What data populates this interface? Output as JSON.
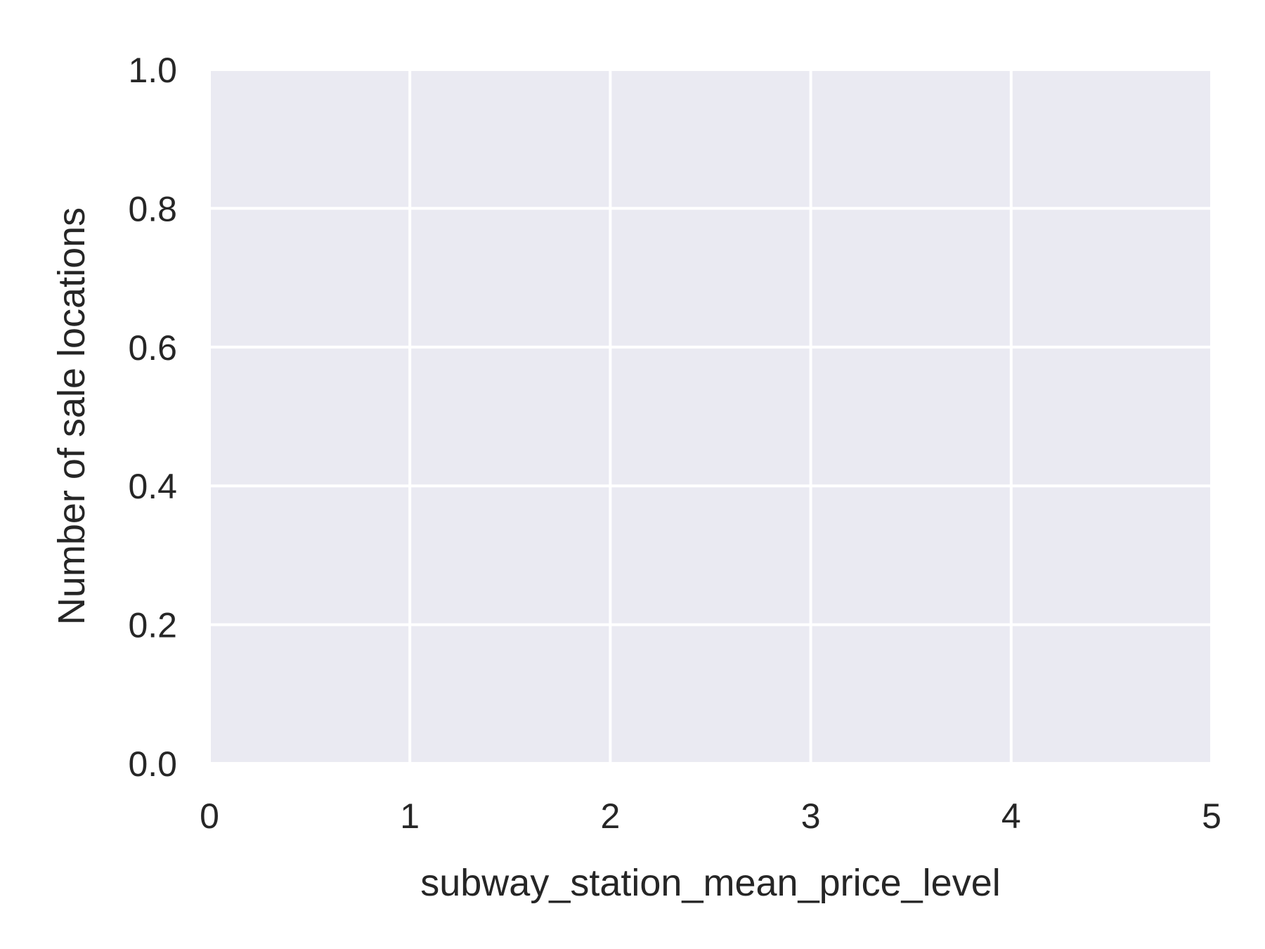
{
  "chart_data": {
    "type": "bar",
    "title": "",
    "xlabel": "subway_station_mean_price_level",
    "ylabel": "Number of sale locations",
    "xlim": [
      0,
      5
    ],
    "ylim": [
      0,
      1.0
    ],
    "x_ticks": [
      0,
      1,
      2,
      3,
      4,
      5
    ],
    "x_tick_labels": [
      "0",
      "1",
      "2",
      "3",
      "4",
      "5"
    ],
    "y_ticks": [
      0,
      0.2,
      0.4,
      0.6,
      0.8,
      1.0
    ],
    "y_tick_labels": [
      "0.0",
      "0.2",
      "0.4",
      "0.6",
      "0.8",
      "1.0"
    ],
    "grid": true,
    "series": [],
    "colors": {
      "plot_background": "#eaeaf2",
      "grid": "#ffffff",
      "text": "#262626"
    }
  }
}
